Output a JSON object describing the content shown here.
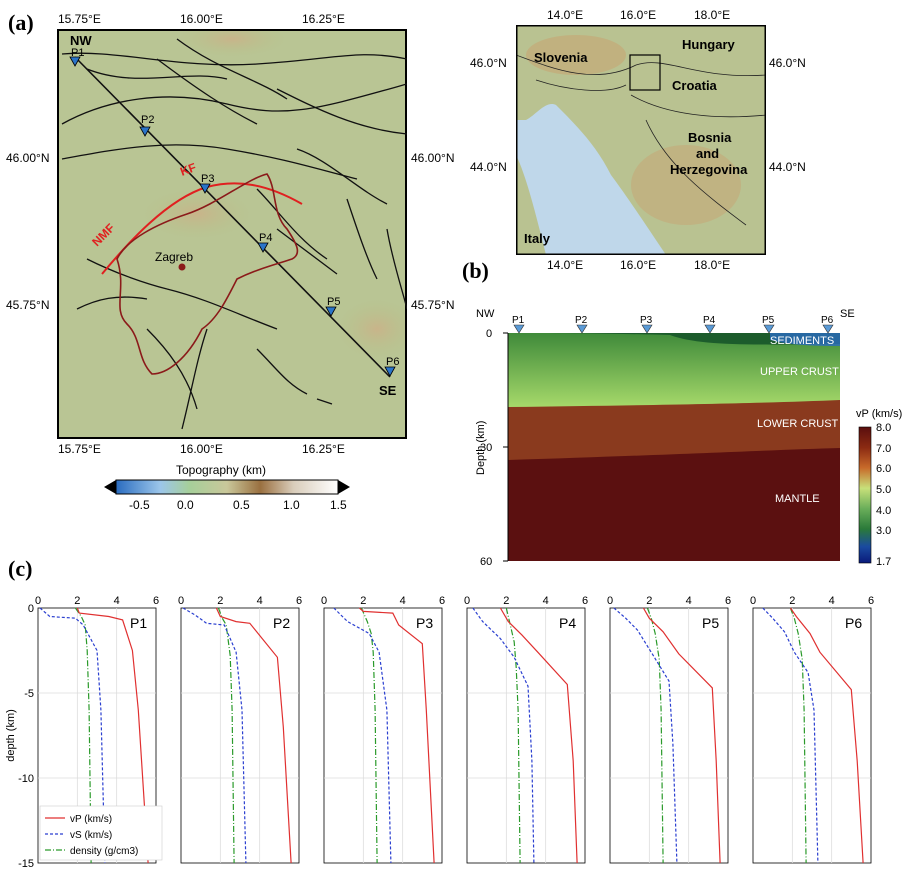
{
  "panels": {
    "a": "(a)",
    "b": "(b)",
    "c": "(c)"
  },
  "map_a": {
    "lon_ticks": [
      "15.75°E",
      "16.00°E",
      "16.25°E"
    ],
    "lat_ticks": [
      "46.00°N",
      "45.75°N"
    ],
    "nw": "NW",
    "se": "SE",
    "points": [
      "P1",
      "P2",
      "P3",
      "P4",
      "P5",
      "P6"
    ],
    "faults": [
      "KF",
      "NMF"
    ],
    "city": "Zagreb",
    "colorbar_title": "Topography (km)",
    "colorbar_ticks": [
      "-0.5",
      "0.0",
      "0.5",
      "1.0",
      "1.5"
    ]
  },
  "map_inset": {
    "lon_ticks": [
      "14.0°E",
      "16.0°E",
      "18.0°E"
    ],
    "lat_ticks": [
      "46.0°N",
      "44.0°N"
    ],
    "countries": [
      "Slovenia",
      "Hungary",
      "Croatia",
      "Bosnia",
      "and",
      "Herzegovina",
      "Italy"
    ]
  },
  "section_b": {
    "nw": "NW",
    "se": "SE",
    "points": [
      "P1",
      "P2",
      "P3",
      "P4",
      "P5",
      "P6"
    ],
    "y_ticks": [
      "0",
      "30",
      "60"
    ],
    "ylabel": "Depth (km)",
    "layers": [
      "SEDIMENTS",
      "UPPER CRUST",
      "LOWER CRUST",
      "MANTLE"
    ],
    "cbar_title": "vP (km/s)",
    "cbar_ticks": [
      "8.0",
      "7.0",
      "6.0",
      "5.0",
      "4.0",
      "3.0",
      "1.7"
    ]
  },
  "chart_data": {
    "type": "line",
    "ylabel": "depth (km)",
    "ylim": [
      -15,
      0
    ],
    "xlim": [
      0,
      6
    ],
    "x_ticks": [
      "0",
      "2",
      "4",
      "6"
    ],
    "y_ticks": [
      "0",
      "-5",
      "-10",
      "-15"
    ],
    "legend": [
      "vP (km/s)",
      "vS (km/s)",
      "density (g/cm3)"
    ],
    "colors": {
      "vp": "#e03030",
      "vs": "#2a3fd0",
      "density": "#2a9a2a"
    },
    "profiles": [
      {
        "name": "P1",
        "vp": [
          [
            2.0,
            0
          ],
          [
            2.1,
            -0.3
          ],
          [
            3.6,
            -0.5
          ],
          [
            4.3,
            -0.7
          ],
          [
            4.8,
            -2.5
          ],
          [
            5.1,
            -6
          ],
          [
            5.6,
            -15
          ]
        ],
        "vs": [
          [
            0.1,
            0
          ],
          [
            0.6,
            -0.5
          ],
          [
            1.9,
            -0.6
          ],
          [
            2.3,
            -1
          ],
          [
            3.0,
            -2.5
          ],
          [
            3.2,
            -6
          ],
          [
            3.4,
            -15
          ]
        ],
        "density": [
          [
            1.9,
            0
          ],
          [
            2.2,
            -0.5
          ],
          [
            2.4,
            -1
          ],
          [
            2.5,
            -2.5
          ],
          [
            2.6,
            -6
          ],
          [
            2.7,
            -15
          ]
        ]
      },
      {
        "name": "P2",
        "vp": [
          [
            1.8,
            0
          ],
          [
            2.0,
            -0.5
          ],
          [
            2.8,
            -0.8
          ],
          [
            3.5,
            -0.9
          ],
          [
            4.9,
            -2.9
          ],
          [
            5.2,
            -7
          ],
          [
            5.6,
            -15
          ]
        ],
        "vs": [
          [
            0.1,
            0
          ],
          [
            0.7,
            -0.4
          ],
          [
            1.3,
            -0.9
          ],
          [
            2.2,
            -1
          ],
          [
            2.8,
            -2.6
          ],
          [
            3.1,
            -6
          ],
          [
            3.3,
            -15
          ]
        ],
        "density": [
          [
            1.9,
            0
          ],
          [
            2.1,
            -0.6
          ],
          [
            2.3,
            -1
          ],
          [
            2.5,
            -2.8
          ],
          [
            2.6,
            -6
          ],
          [
            2.7,
            -15
          ]
        ]
      },
      {
        "name": "P3",
        "vp": [
          [
            1.8,
            0
          ],
          [
            2.0,
            -0.2
          ],
          [
            3.5,
            -0.3
          ],
          [
            3.8,
            -1.0
          ],
          [
            5.0,
            -2.1
          ],
          [
            5.2,
            -6
          ],
          [
            5.6,
            -15
          ]
        ],
        "vs": [
          [
            0.5,
            0
          ],
          [
            1.2,
            -0.8
          ],
          [
            2.3,
            -1.5
          ],
          [
            2.8,
            -2.6
          ],
          [
            3.2,
            -6
          ],
          [
            3.4,
            -15
          ]
        ],
        "density": [
          [
            1.9,
            0
          ],
          [
            2.2,
            -0.8
          ],
          [
            2.4,
            -1.5
          ],
          [
            2.5,
            -2.6
          ],
          [
            2.6,
            -6
          ],
          [
            2.7,
            -15
          ]
        ]
      },
      {
        "name": "P4",
        "vp": [
          [
            1.7,
            0
          ],
          [
            2.1,
            -0.8
          ],
          [
            2.8,
            -1.6
          ],
          [
            3.6,
            -2.6
          ],
          [
            5.1,
            -4.5
          ],
          [
            5.4,
            -9
          ],
          [
            5.6,
            -15
          ]
        ],
        "vs": [
          [
            0.3,
            0
          ],
          [
            0.8,
            -0.8
          ],
          [
            1.7,
            -1.8
          ],
          [
            2.4,
            -2.9
          ],
          [
            3.1,
            -4.6
          ],
          [
            3.3,
            -9
          ],
          [
            3.4,
            -15
          ]
        ],
        "density": [
          [
            2.0,
            0
          ],
          [
            2.2,
            -1
          ],
          [
            2.4,
            -2
          ],
          [
            2.5,
            -3.5
          ],
          [
            2.6,
            -6
          ],
          [
            2.7,
            -15
          ]
        ]
      },
      {
        "name": "P5",
        "vp": [
          [
            1.7,
            0
          ],
          [
            2.0,
            -0.6
          ],
          [
            2.7,
            -1.4
          ],
          [
            3.5,
            -2.7
          ],
          [
            5.2,
            -4.7
          ],
          [
            5.4,
            -9
          ],
          [
            5.6,
            -15
          ]
        ],
        "vs": [
          [
            0.2,
            0
          ],
          [
            0.8,
            -0.6
          ],
          [
            1.4,
            -1.3
          ],
          [
            2.2,
            -2.8
          ],
          [
            3.0,
            -4.3
          ],
          [
            3.2,
            -8
          ],
          [
            3.4,
            -15
          ]
        ],
        "density": [
          [
            1.9,
            0
          ],
          [
            2.1,
            -0.6
          ],
          [
            2.3,
            -1.5
          ],
          [
            2.5,
            -3
          ],
          [
            2.6,
            -6
          ],
          [
            2.7,
            -15
          ]
        ]
      },
      {
        "name": "P6",
        "vp": [
          [
            1.9,
            0
          ],
          [
            2.2,
            -0.5
          ],
          [
            2.9,
            -1.5
          ],
          [
            3.4,
            -2.6
          ],
          [
            5.0,
            -4.8
          ],
          [
            5.3,
            -9
          ],
          [
            5.6,
            -15
          ]
        ],
        "vs": [
          [
            0.5,
            0
          ],
          [
            1.0,
            -0.6
          ],
          [
            1.6,
            -1.4
          ],
          [
            2.1,
            -2.6
          ],
          [
            2.8,
            -3.8
          ],
          [
            3.1,
            -6
          ],
          [
            3.3,
            -15
          ]
        ],
        "density": [
          [
            1.9,
            0
          ],
          [
            2.1,
            -0.6
          ],
          [
            2.3,
            -1.5
          ],
          [
            2.5,
            -3
          ],
          [
            2.6,
            -6
          ],
          [
            2.7,
            -15
          ]
        ]
      }
    ]
  }
}
